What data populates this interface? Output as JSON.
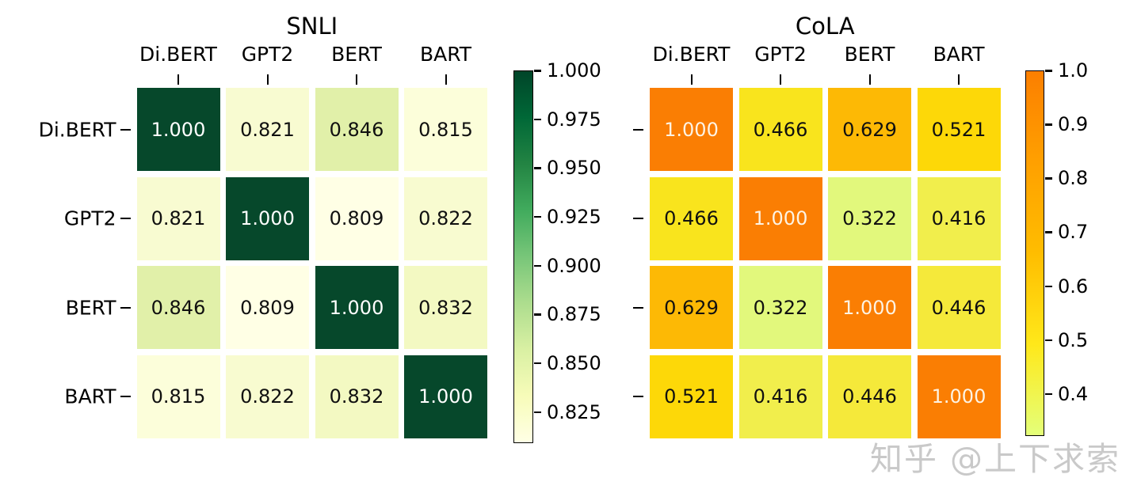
{
  "page": {
    "background": "#ffffff"
  },
  "watermark": {
    "text": "知乎 @上下求索",
    "color": "#c9c9c9"
  },
  "chart_data": [
    {
      "type": "heatmap",
      "title": "SNLI",
      "colormap": "YlGn",
      "x_labels": [
        "Di.BERT",
        "GPT2",
        "BERT",
        "BART"
      ],
      "y_labels": [
        "Di.BERT",
        "GPT2",
        "BERT",
        "BART"
      ],
      "values": [
        [
          1.0,
          0.821,
          0.846,
          0.815
        ],
        [
          0.821,
          1.0,
          0.809,
          0.822
        ],
        [
          0.846,
          0.809,
          1.0,
          0.832
        ],
        [
          0.815,
          0.822,
          0.832,
          1.0
        ]
      ],
      "value_labels": [
        [
          "1.000",
          "0.821",
          "0.846",
          "0.815"
        ],
        [
          "0.821",
          "1.000",
          "0.809",
          "0.822"
        ],
        [
          "0.846",
          "0.809",
          "1.000",
          "0.832"
        ],
        [
          "0.815",
          "0.822",
          "0.832",
          "1.000"
        ]
      ],
      "cell_colors": [
        [
          "#06482b",
          "#f8fbd1",
          "#e1f0a9",
          "#fcfeda"
        ],
        [
          "#f8fbd1",
          "#06482b",
          "#ffffe5",
          "#f8fbd0"
        ],
        [
          "#e1f0a9",
          "#ffffe5",
          "#06482b",
          "#f3f9c2"
        ],
        [
          "#fcfeda",
          "#f8fbd0",
          "#f3f9c2",
          "#06482b"
        ]
      ],
      "diagonal_text_color": "#ffffff",
      "cell_text_color": "#101010",
      "colorbar": {
        "min": 0.809,
        "max": 1.0,
        "tick_values": [
          1.0,
          0.975,
          0.95,
          0.925,
          0.9,
          0.875,
          0.85,
          0.825
        ],
        "tick_labels": [
          "1.000",
          "0.975",
          "0.950",
          "0.925",
          "0.900",
          "0.875",
          "0.850",
          "0.825"
        ],
        "gradient": [
          {
            "color": "#ffffe5",
            "pos": 0
          },
          {
            "color": "#f7fcb9",
            "pos": 12.5
          },
          {
            "color": "#d9f0a3",
            "pos": 25
          },
          {
            "color": "#addd8e",
            "pos": 37.5
          },
          {
            "color": "#78c679",
            "pos": 50
          },
          {
            "color": "#41ab5d",
            "pos": 62.5
          },
          {
            "color": "#238443",
            "pos": 75
          },
          {
            "color": "#006837",
            "pos": 87.5
          },
          {
            "color": "#004529",
            "pos": 100
          }
        ]
      }
    },
    {
      "type": "heatmap",
      "title": "CoLA",
      "colormap": "Wistia",
      "x_labels": [
        "Di.BERT",
        "GPT2",
        "BERT",
        "BART"
      ],
      "y_labels": [],
      "values": [
        [
          1.0,
          0.466,
          0.629,
          0.521
        ],
        [
          0.466,
          1.0,
          0.322,
          0.416
        ],
        [
          0.629,
          0.322,
          1.0,
          0.446
        ],
        [
          0.521,
          0.416,
          0.446,
          1.0
        ]
      ],
      "value_labels": [
        [
          "1.000",
          "0.466",
          "0.629",
          "0.521"
        ],
        [
          "0.466",
          "1.000",
          "0.322",
          "0.416"
        ],
        [
          "0.629",
          "0.322",
          "1.000",
          "0.446"
        ],
        [
          "0.521",
          "0.416",
          "0.446",
          "1.000"
        ]
      ],
      "cell_colors": [
        [
          "#fa7e03",
          "#f9e41d",
          "#fdb905",
          "#fdd808"
        ],
        [
          "#f9e41d",
          "#fa7e03",
          "#e2f87c",
          "#f1ee4c"
        ],
        [
          "#fdb905",
          "#e2f87c",
          "#fa7e03",
          "#f5e93a"
        ],
        [
          "#fdd808",
          "#f1ee4c",
          "#f5e93a",
          "#fa7e03"
        ]
      ],
      "diagonal_text_color": "#fdf3e3",
      "cell_text_color": "#101010",
      "colorbar": {
        "min": 0.322,
        "max": 1.0,
        "tick_values": [
          1.0,
          0.9,
          0.8,
          0.7,
          0.6,
          0.5,
          0.4
        ],
        "tick_labels": [
          "1.0",
          "0.9",
          "0.8",
          "0.7",
          "0.6",
          "0.5",
          "0.4"
        ],
        "gradient": [
          {
            "color": "#e4ff7a",
            "pos": 0
          },
          {
            "color": "#ffe81a",
            "pos": 25
          },
          {
            "color": "#ffbd00",
            "pos": 50
          },
          {
            "color": "#ffa000",
            "pos": 75
          },
          {
            "color": "#fc7f00",
            "pos": 100
          }
        ]
      }
    }
  ]
}
